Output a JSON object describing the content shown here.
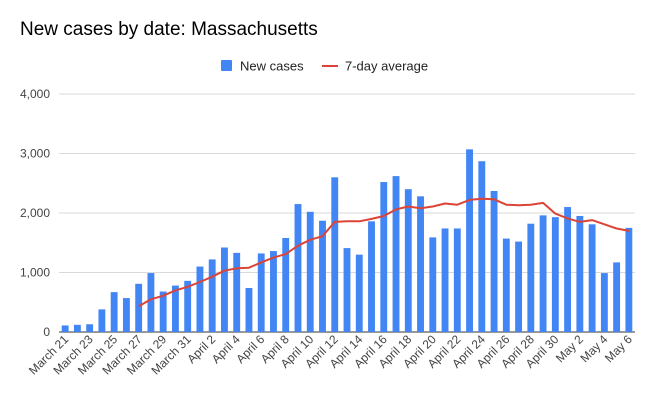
{
  "title": "New cases by date: Massachusetts",
  "legend": {
    "new_cases": "New cases",
    "avg": "7-day average"
  },
  "colors": {
    "bar": "#4285f4",
    "line": "#db4437",
    "grid": "#d9d9d9"
  },
  "chart_data": {
    "type": "bar",
    "title": "New cases by date: Massachusetts",
    "xlabel": "",
    "ylabel": "",
    "ylim": [
      0,
      4000
    ],
    "yticks": [
      "0",
      "1,000",
      "2,000",
      "3,000",
      "4,000"
    ],
    "grid": true,
    "legend_position": "top",
    "categories": [
      "March 21",
      "March 22",
      "March 23",
      "March 24",
      "March 25",
      "March 26",
      "March 27",
      "March 28",
      "March 29",
      "March 30",
      "March 31",
      "April 1",
      "April 2",
      "April 3",
      "April 4",
      "April 5",
      "April 6",
      "April 7",
      "April 8",
      "April 9",
      "April 10",
      "April 11",
      "April 12",
      "April 13",
      "April 14",
      "April 15",
      "April 16",
      "April 17",
      "April 18",
      "April 19",
      "April 20",
      "April 21",
      "April 22",
      "April 23",
      "April 24",
      "April 25",
      "April 26",
      "April 27",
      "April 28",
      "April 29",
      "April 30",
      "May 1",
      "May 2",
      "May 3",
      "May 4",
      "May 5",
      "May 6"
    ],
    "x_tick_labels": [
      "March 21",
      "March 23",
      "March 25",
      "March 27",
      "March 29",
      "March 31",
      "April 2",
      "April 4",
      "April 6",
      "April 8",
      "April 10",
      "April 12",
      "April 14",
      "April 16",
      "April 18",
      "April 20",
      "April 22",
      "April 24",
      "April 26",
      "April 28",
      "April 30",
      "May 2",
      "May 4",
      "May 6"
    ],
    "series": [
      {
        "name": "New cases",
        "type": "bar",
        "values": [
          110,
          120,
          130,
          380,
          670,
          570,
          810,
          990,
          680,
          780,
          860,
          1100,
          1220,
          1420,
          1330,
          740,
          1320,
          1360,
          1580,
          2150,
          2020,
          1870,
          2600,
          1410,
          1300,
          1860,
          2520,
          2620,
          2400,
          2280,
          1590,
          1740,
          1740,
          3070,
          2870,
          2370,
          1570,
          1520,
          1820,
          1960,
          1930,
          2100,
          1950,
          1810,
          990,
          1170,
          1750
        ]
      },
      {
        "name": "7-day average",
        "type": "line",
        "values": [
          null,
          null,
          null,
          null,
          null,
          null,
          430,
          550,
          610,
          700,
          760,
          840,
          930,
          1030,
          1070,
          1080,
          1170,
          1250,
          1310,
          1450,
          1550,
          1610,
          1850,
          1860,
          1860,
          1900,
          1950,
          2060,
          2110,
          2080,
          2110,
          2160,
          2140,
          2220,
          2240,
          2230,
          2140,
          2130,
          2140,
          2170,
          1990,
          1910,
          1850,
          1880,
          1810,
          1740,
          1700
        ]
      }
    ]
  }
}
